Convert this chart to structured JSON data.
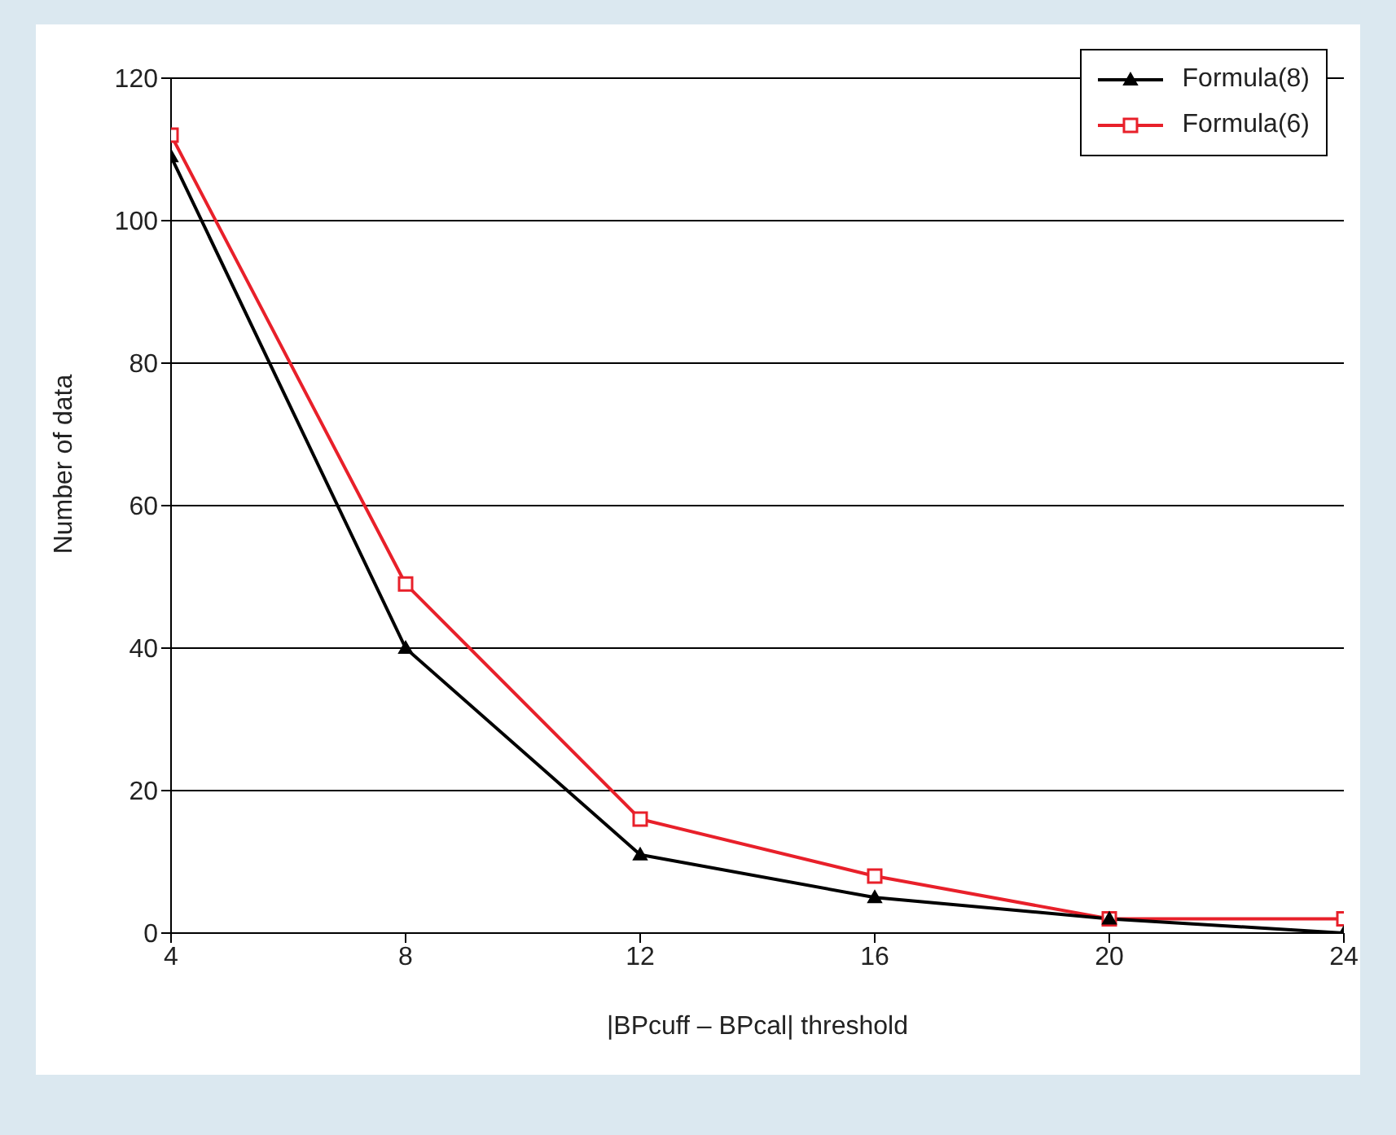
{
  "chart_data": {
    "type": "line",
    "xlabel": "|BPcuff – BPcal| threshold",
    "ylabel": "Number of data",
    "x": [
      4,
      8,
      12,
      16,
      20,
      24
    ],
    "series": [
      {
        "name": "Formula(8)",
        "color": "#000000",
        "marker": "triangle",
        "values": [
          109,
          40,
          11,
          5,
          2,
          0
        ]
      },
      {
        "name": "Formula(6)",
        "color": "#e8202a",
        "marker": "square",
        "values": [
          112,
          49,
          16,
          8,
          2,
          2
        ]
      }
    ],
    "xlim": [
      4,
      24
    ],
    "xticks": [
      4,
      8,
      12,
      16,
      20,
      24
    ],
    "ylim": [
      0,
      120
    ],
    "yticks": [
      0,
      20,
      40,
      60,
      80,
      100,
      120
    ],
    "grid": "y",
    "legend": "top right"
  }
}
